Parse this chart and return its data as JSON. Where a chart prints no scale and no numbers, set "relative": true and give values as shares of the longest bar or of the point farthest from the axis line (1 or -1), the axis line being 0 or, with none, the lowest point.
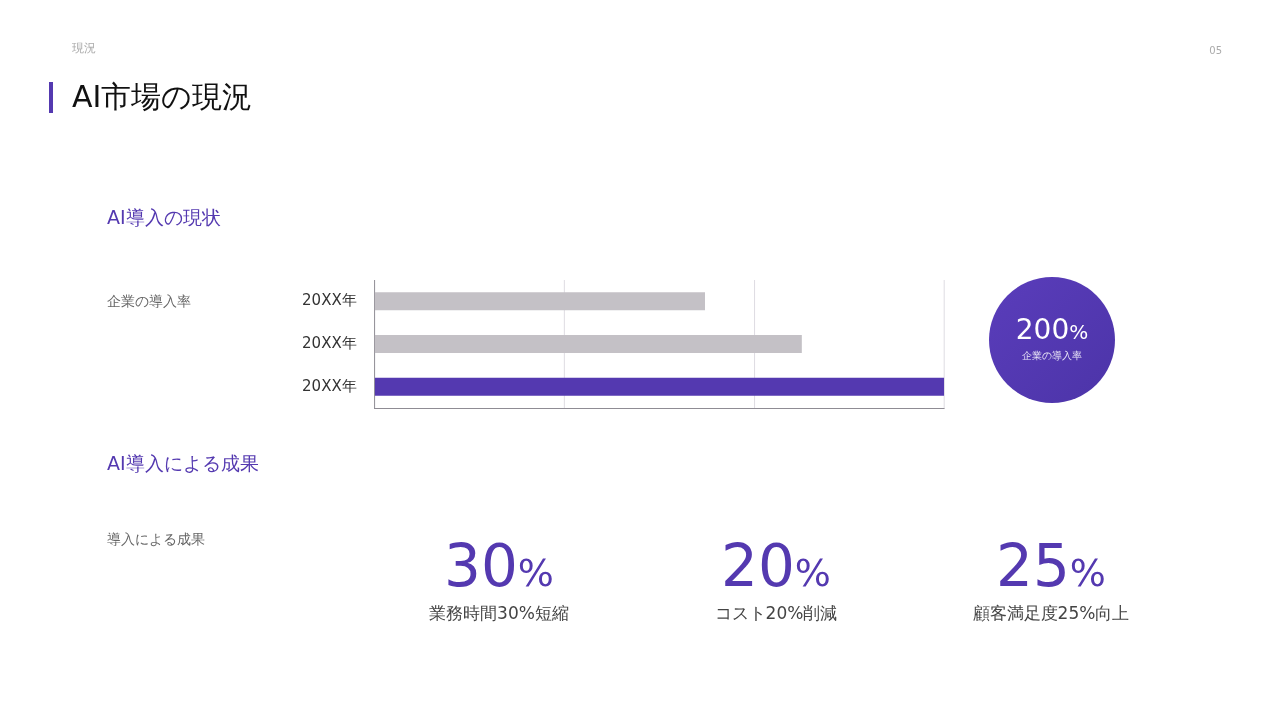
{
  "chart_data": [
    {
      "type": "bar",
      "orientation": "horizontal",
      "relative": true,
      "title": "AI市場の現況",
      "subtitle": "AI導入の現状",
      "ylabel": "企業の導入率",
      "categories": [
        "20XX年",
        "20XX年",
        "20XX年"
      ],
      "values": [
        0.58,
        0.75,
        1
      ],
      "colors": [
        "#c4c1c6",
        "#c4c1c6",
        "#5439b0"
      ],
      "ref_lines": [
        {
          "axis": "x",
          "value": 0.333,
          "label": null,
          "color": "#dedce2"
        },
        {
          "axis": "x",
          "value": 0.667,
          "label": null,
          "color": "#dedce2"
        },
        {
          "axis": "x",
          "value": 1,
          "label": null,
          "color": "#dedce2"
        }
      ],
      "annotations": [
        "現況",
        "05",
        "200%",
        "企業の導入率"
      ]
    },
    {
      "type": "other",
      "title": "AI導入による成果",
      "annotations": [
        "導入による成果",
        "30%",
        "業務時間30%短縮",
        "20%",
        "コスト20%削減",
        "25%",
        "顧客満足度25%向上"
      ]
    }
  ]
}
